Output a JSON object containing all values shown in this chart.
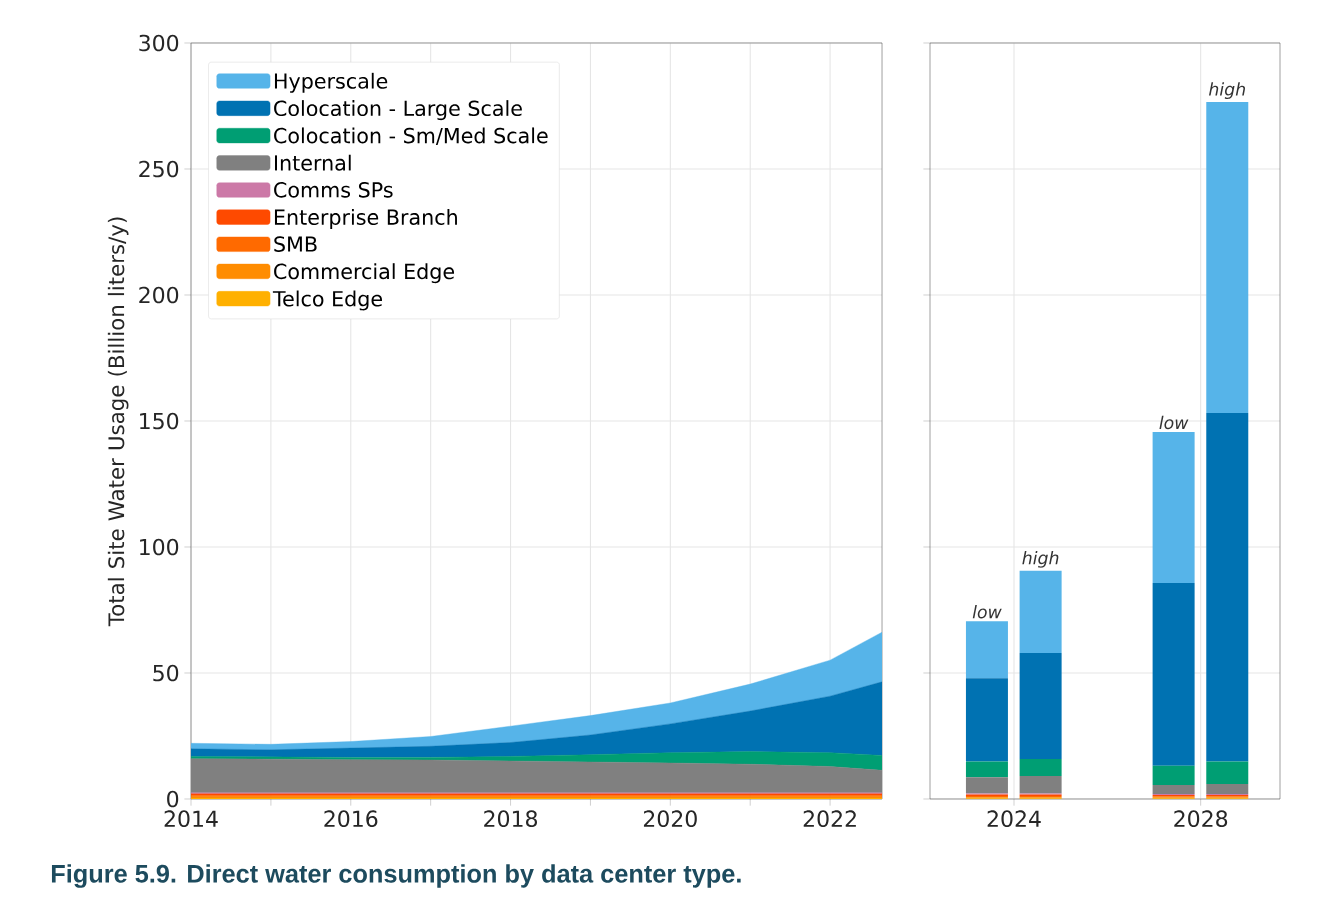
{
  "chart_data": [
    {
      "type": "area",
      "stacked": true,
      "ylabel": "Total Site Water Usage (Billion liters/y)",
      "x": [
        2014,
        2015,
        2016,
        2017,
        2018,
        2019,
        2020,
        2021,
        2022,
        2022.65
      ],
      "xlim": [
        2014,
        2022.65
      ],
      "xticks": [
        2014,
        {
          "value": 2015,
          "label": null
        },
        2016,
        {
          "value": 2017,
          "label": null
        },
        2018,
        {
          "value": 2019,
          "label": null
        },
        2020,
        {
          "value": 2021,
          "label": null
        },
        2022
      ],
      "ylim": [
        0,
        300
      ],
      "yticks": [
        0,
        50,
        100,
        150,
        200,
        250,
        300
      ],
      "grid": true,
      "legend": "top left",
      "series": [
        {
          "name": "Telco Edge",
          "color": "#ffb000",
          "values": [
            0.4,
            0.4,
            0.4,
            0.4,
            0.4,
            0.4,
            0.4,
            0.4,
            0.4,
            0.4
          ]
        },
        {
          "name": "Commercial Edge",
          "color": "#ff8c00",
          "values": [
            0.5,
            0.5,
            0.5,
            0.5,
            0.5,
            0.5,
            0.5,
            0.5,
            0.5,
            0.5
          ]
        },
        {
          "name": "SMB",
          "color": "#ff6a00",
          "values": [
            0.6,
            0.6,
            0.6,
            0.6,
            0.6,
            0.6,
            0.6,
            0.6,
            0.6,
            0.6
          ]
        },
        {
          "name": "Enterprise Branch",
          "color": "#fe4a00",
          "values": [
            0.6,
            0.6,
            0.6,
            0.6,
            0.6,
            0.6,
            0.6,
            0.6,
            0.6,
            0.6
          ]
        },
        {
          "name": "Comms SPs",
          "color": "#cc79a7",
          "values": [
            0.4,
            0.4,
            0.4,
            0.4,
            0.4,
            0.4,
            0.4,
            0.4,
            0.4,
            0.4
          ]
        },
        {
          "name": "Internal",
          "color": "#808080",
          "values": [
            13.5,
            13.3,
            13.1,
            13.0,
            12.6,
            12.2,
            11.8,
            11.3,
            10.4,
            8.9
          ]
        },
        {
          "name": "Colocation - Sm/Med Scale",
          "color": "#009e73",
          "values": [
            0.9,
            0.9,
            0.9,
            1.0,
            1.8,
            2.9,
            4.1,
            5.0,
            5.5,
            5.9
          ]
        },
        {
          "name": "Colocation - Large Scale",
          "color": "#0072b2",
          "values": [
            3.0,
            2.8,
            3.7,
            4.4,
            5.5,
            7.8,
            11.4,
            16.1,
            22.4,
            29.2
          ]
        },
        {
          "name": "Hyperscale",
          "color": "#56b4e9",
          "values": [
            2.2,
            2.2,
            2.6,
            3.9,
            6.5,
            7.7,
            8.3,
            10.7,
            14.3,
            19.7
          ]
        }
      ],
      "annotations": [
        "Figure 5.9.  Direct water consumption by data center type."
      ]
    },
    {
      "type": "bar",
      "stacked": true,
      "x": [
        2023.42,
        2024.57,
        2027.42,
        2028.57
      ],
      "xlim": [
        2022.2,
        2029.7
      ],
      "xticks": [
        2024,
        2028
      ],
      "ylim": [
        0,
        300
      ],
      "yticks": [
        0,
        50,
        100,
        150,
        200,
        250,
        300
      ],
      "tick_labels": "x",
      "grid": true,
      "series": [
        {
          "color": "#ffb000",
          "values": [
            0.3,
            0.3,
            0.3,
            0.3
          ]
        },
        {
          "color": "#ff8c00",
          "values": [
            0.4,
            0.4,
            0.4,
            0.4
          ]
        },
        {
          "color": "#ff6a00",
          "values": [
            0.5,
            0.5,
            0.4,
            0.4
          ]
        },
        {
          "color": "#fe4a00",
          "values": [
            0.6,
            0.6,
            0.5,
            0.5
          ]
        },
        {
          "color": "#cc79a7",
          "values": [
            0.4,
            0.4,
            0.4,
            0.4
          ]
        },
        {
          "color": "#808080",
          "values": [
            6.4,
            6.9,
            3.6,
            4.0
          ]
        },
        {
          "color": "#009e73",
          "values": [
            6.3,
            6.8,
            7.6,
            8.9
          ]
        },
        {
          "color": "#0072b2",
          "values": [
            33.0,
            42.0,
            72.5,
            138.3
          ]
        },
        {
          "color": "#56b4e9",
          "values": [
            22.6,
            32.7,
            59.9,
            123.4
          ]
        }
      ],
      "annotations": [
        {
          "text": "low",
          "x": 2023.42,
          "y": 70.5
        },
        {
          "text": "high",
          "x": 2024.57,
          "y": 90.6
        },
        {
          "text": "low",
          "x": 2027.42,
          "y": 145.6
        },
        {
          "text": "high",
          "x": 2028.57,
          "y": 276.6
        }
      ]
    }
  ]
}
